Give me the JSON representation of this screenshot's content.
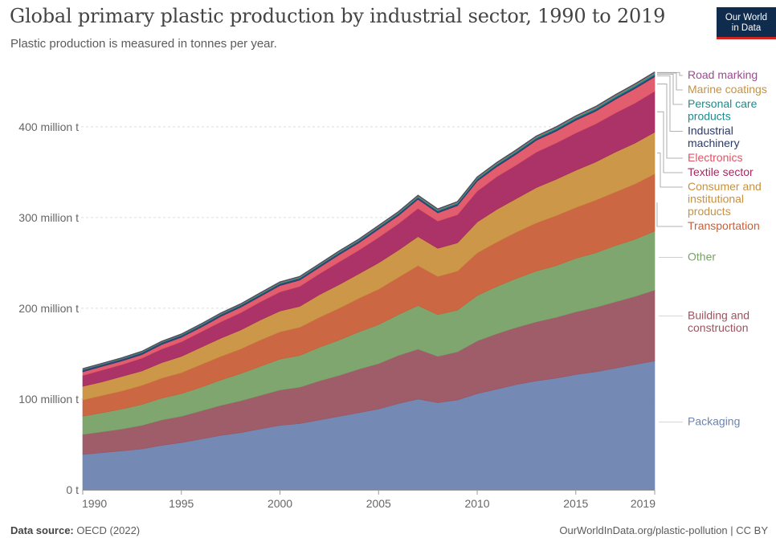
{
  "header": {
    "title": "Global primary plastic production by industrial sector, 1990 to 2019",
    "subtitle": "Plastic production is measured in tonnes per year.",
    "logo_line1": "Our World",
    "logo_line2": "in Data"
  },
  "footer": {
    "source_label": "Data source:",
    "source_value": "OECD (2022)",
    "attribution": "OurWorldInData.org/plastic-pollution | CC BY"
  },
  "chart_data": {
    "type": "area",
    "stacked": true,
    "x": [
      1990,
      1991,
      1992,
      1993,
      1994,
      1995,
      1996,
      1997,
      1998,
      1999,
      2000,
      2001,
      2002,
      2003,
      2004,
      2005,
      2006,
      2007,
      2008,
      2009,
      2010,
      2011,
      2012,
      2013,
      2014,
      2015,
      2016,
      2017,
      2018,
      2019
    ],
    "x_ticks": [
      {
        "value": 1990,
        "label": "1990"
      },
      {
        "value": 1995,
        "label": "1995"
      },
      {
        "value": 2000,
        "label": "2000"
      },
      {
        "value": 2005,
        "label": "2005"
      },
      {
        "value": 2010,
        "label": "2010"
      },
      {
        "value": 2015,
        "label": "2015"
      },
      {
        "value": 2019,
        "label": "2019"
      }
    ],
    "y_ticks": [
      {
        "value": 0,
        "label": "0 t"
      },
      {
        "value": 100,
        "label": "100 million t"
      },
      {
        "value": 200,
        "label": "200 million t"
      },
      {
        "value": 300,
        "label": "300 million t"
      },
      {
        "value": 400,
        "label": "400 million t"
      }
    ],
    "ylim": [
      0,
      460
    ],
    "grid": "horizontal dashed",
    "legend": "right, labels aligned to stack order",
    "series": [
      {
        "name": "Packaging",
        "color": "#6d83b0",
        "values": [
          39,
          41,
          43,
          45,
          49,
          52,
          56,
          60,
          63,
          67,
          71,
          73,
          77,
          81,
          85,
          89,
          95,
          100,
          96,
          99,
          106,
          111,
          116,
          120,
          123,
          127,
          130,
          134,
          138,
          142
        ]
      },
      {
        "name": "Building and construction",
        "color": "#9a5461",
        "values": [
          22,
          23,
          24,
          26,
          28,
          29,
          31,
          33,
          35,
          37,
          39,
          40,
          43,
          45,
          48,
          50,
          53,
          55,
          51,
          53,
          58,
          61,
          63,
          65,
          67,
          69,
          71,
          73,
          75,
          78
        ]
      },
      {
        "name": "Other",
        "color": "#79a168",
        "values": [
          20,
          21,
          22,
          23,
          24,
          25,
          26,
          28,
          30,
          32,
          34,
          35,
          37,
          39,
          41,
          43,
          45,
          48,
          46,
          46,
          50,
          52,
          54,
          56,
          57,
          59,
          60,
          62,
          63,
          65
        ]
      },
      {
        "name": "Transportation",
        "color": "#c85f38",
        "values": [
          18,
          19,
          20,
          21,
          22,
          23,
          25,
          26,
          27,
          29,
          30,
          31,
          33,
          35,
          37,
          39,
          41,
          44,
          42,
          43,
          47,
          49,
          51,
          53,
          55,
          56,
          58,
          59,
          61,
          63
        ]
      },
      {
        "name": "Consumer and institutional products",
        "color": "#c9913e",
        "values": [
          15,
          15,
          16,
          16,
          17,
          18,
          19,
          20,
          21,
          22,
          23,
          23,
          25,
          26,
          27,
          29,
          30,
          32,
          31,
          31,
          34,
          36,
          37,
          39,
          40,
          41,
          42,
          44,
          45,
          46
        ]
      },
      {
        "name": "Textile sector",
        "color": "#a7285f",
        "values": [
          12,
          13,
          13,
          14,
          15,
          16,
          17,
          18,
          19,
          20,
          21,
          22,
          23,
          25,
          26,
          28,
          29,
          31,
          30,
          31,
          34,
          36,
          37,
          39,
          40,
          41,
          42,
          43,
          44,
          45
        ]
      },
      {
        "name": "Electronics",
        "color": "#e05466",
        "values": [
          4,
          4,
          4,
          4,
          5,
          5,
          5,
          6,
          6,
          6,
          7,
          7,
          7,
          8,
          8,
          9,
          9,
          10,
          9,
          10,
          11,
          11,
          12,
          13,
          13,
          14,
          14,
          15,
          16,
          16
        ]
      },
      {
        "name": "Industrial machinery",
        "color": "#2b3a67",
        "values": [
          2,
          2,
          2,
          2,
          2,
          2,
          2,
          2,
          2,
          2,
          2,
          2,
          2,
          2,
          2,
          2,
          2,
          2,
          2,
          2,
          2,
          2,
          2,
          2,
          2,
          2,
          2,
          2,
          2,
          2
        ]
      },
      {
        "name": "Personal care products",
        "color": "#1a8c8c",
        "values": [
          0.7,
          0.7,
          0.7,
          0.8,
          0.8,
          0.8,
          0.9,
          0.9,
          0.9,
          1,
          1,
          1,
          1,
          1.1,
          1.1,
          1.2,
          1.2,
          1.3,
          1.2,
          1.3,
          1.4,
          1.4,
          1.5,
          1.5,
          1.6,
          1.6,
          1.7,
          1.7,
          1.8,
          1.8
        ]
      },
      {
        "name": "Marine coatings",
        "color": "#c9913e",
        "values": [
          0.3,
          0.3,
          0.3,
          0.3,
          0.3,
          0.3,
          0.3,
          0.3,
          0.3,
          0.4,
          0.4,
          0.4,
          0.4,
          0.4,
          0.4,
          0.4,
          0.4,
          0.5,
          0.5,
          0.5,
          0.5,
          0.5,
          0.5,
          0.5,
          0.5,
          0.6,
          0.6,
          0.6,
          0.6,
          0.6
        ]
      },
      {
        "name": "Road marking",
        "color": "#a14795",
        "values": [
          0.4,
          0.4,
          0.4,
          0.4,
          0.4,
          0.4,
          0.5,
          0.5,
          0.5,
          0.5,
          0.5,
          0.5,
          0.5,
          0.5,
          0.6,
          0.6,
          0.6,
          0.6,
          0.6,
          0.6,
          0.6,
          0.7,
          0.7,
          0.7,
          0.7,
          0.7,
          0.8,
          0.8,
          0.8,
          0.8
        ]
      }
    ],
    "legend_labels": [
      {
        "series": "Road marking",
        "lines": [
          "Road marking"
        ],
        "color": "#a14795"
      },
      {
        "series": "Marine coatings",
        "lines": [
          "Marine coatings"
        ],
        "color": "#c9913e"
      },
      {
        "series": "Personal care products",
        "lines": [
          "Personal care",
          "products"
        ],
        "color": "#1a8c8c"
      },
      {
        "series": "Industrial machinery",
        "lines": [
          "Industrial",
          "machinery"
        ],
        "color": "#2b3a67"
      },
      {
        "series": "Electronics",
        "lines": [
          "Electronics"
        ],
        "color": "#e05466"
      },
      {
        "series": "Textile sector",
        "lines": [
          "Textile sector"
        ],
        "color": "#a7285f"
      },
      {
        "series": "Consumer and institutional products",
        "lines": [
          "Consumer and",
          "institutional",
          "products"
        ],
        "color": "#c9913e"
      },
      {
        "series": "Transportation",
        "lines": [
          "Transportation"
        ],
        "color": "#c85f38"
      },
      {
        "series": "Other",
        "lines": [
          "Other"
        ],
        "color": "#79a168"
      },
      {
        "series": "Building and construction",
        "lines": [
          "Building and",
          "construction"
        ],
        "color": "#9a5461"
      },
      {
        "series": "Packaging",
        "lines": [
          "Packaging"
        ],
        "color": "#6d83b0"
      }
    ]
  }
}
